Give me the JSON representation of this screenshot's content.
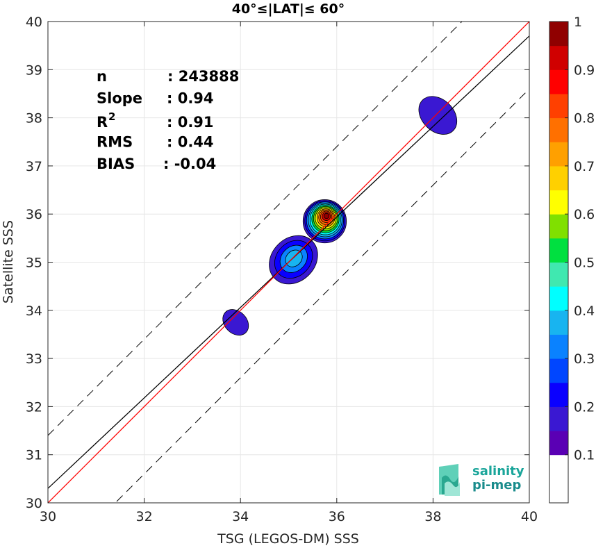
{
  "chart_data": {
    "type": "scatter",
    "title": "40°≤|LAT|≤ 60°",
    "xlabel": "TSG (LEGOS-DM) SSS",
    "ylabel": "Satellite SSS",
    "xlim": [
      30,
      40
    ],
    "ylim": [
      30,
      40
    ],
    "xticks": [
      "30",
      "32",
      "34",
      "36",
      "38",
      "40"
    ],
    "yticks": [
      "30",
      "31",
      "32",
      "33",
      "34",
      "35",
      "36",
      "37",
      "38",
      "39",
      "40"
    ],
    "grid": true,
    "stats": [
      {
        "label": "n",
        "value": ": 243888"
      },
      {
        "label": "Slope",
        "value": ": 0.94"
      },
      {
        "label": "R",
        "sup": "2",
        "value": ": 0.91"
      },
      {
        "label": "RMS",
        "value": ": 0.44"
      },
      {
        "label": "BIAS",
        "value": ": -0.04"
      }
    ],
    "lines": {
      "identity": {
        "color": "#ff0000",
        "slope": 1.0,
        "intercept": 0.0
      },
      "regression": {
        "color": "#000000",
        "slope": 0.94,
        "intercept": 2.1
      },
      "upper_bound": {
        "style": "dashed",
        "slope": 1.0,
        "intercept": 1.4
      },
      "lower_bound": {
        "style": "dashed",
        "slope": 1.0,
        "intercept": -1.4
      }
    },
    "density_blobs": [
      {
        "cx": 33.9,
        "cy": 33.75,
        "rx": 0.23,
        "ry": 0.3,
        "levels": 1
      },
      {
        "cx": 38.1,
        "cy": 38.05,
        "rx": 0.33,
        "ry": 0.45,
        "levels": 1
      },
      {
        "cx": 35.1,
        "cy": 35.05,
        "rx": 0.55,
        "ry": 0.45,
        "levels": 4
      },
      {
        "cx": 35.75,
        "cy": 35.85,
        "rx": 0.45,
        "ry": 0.45,
        "levels": 13
      }
    ],
    "colorbar": {
      "min": 0,
      "max": 1,
      "ticks": [
        "0.1",
        "0.2",
        "0.3",
        "0.4",
        "0.5",
        "0.6",
        "0.7",
        "0.8",
        "0.9",
        "1"
      ],
      "colors": [
        "#ffffff",
        "#5a00b4",
        "#3a18d2",
        "#0a00ff",
        "#0046ff",
        "#0a82ff",
        "#18b4f0",
        "#00ffff",
        "#40e8b0",
        "#00e040",
        "#80e000",
        "#ffff00",
        "#ffd000",
        "#ffa000",
        "#ff7000",
        "#ff4000",
        "#ff0000",
        "#d00000",
        "#900000"
      ]
    }
  },
  "logo": {
    "line1": "salinity",
    "line2": "pi-mep"
  }
}
